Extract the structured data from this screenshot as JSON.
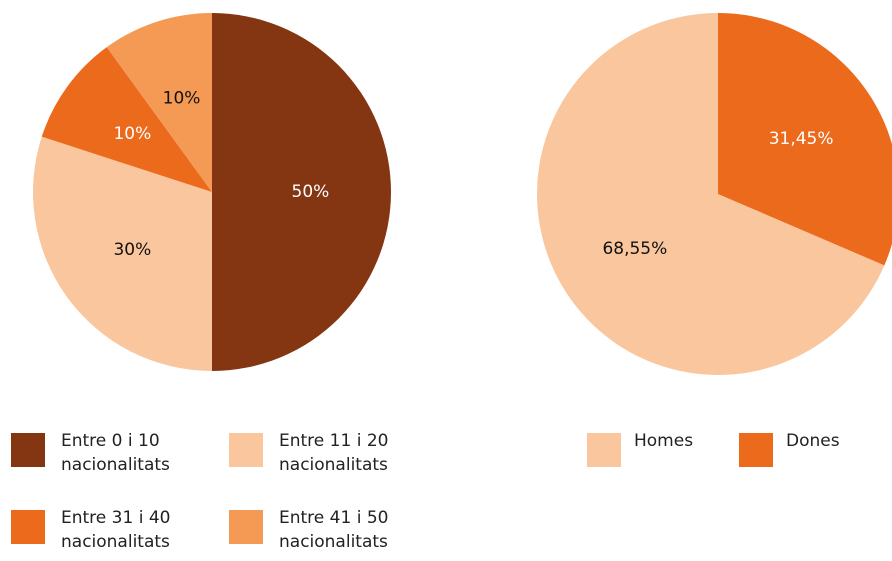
{
  "chart_data": [
    {
      "type": "pie",
      "categories": [
        "Entre 0 i 10 nacionalitats",
        "Entre 11 i 20 nacionalitats",
        "Entre 31 i 40 nacionalitats",
        "Entre 41 i 50 nacionalitats"
      ],
      "values": [
        50,
        30,
        10,
        10
      ],
      "value_labels": [
        "50%",
        "30%",
        "10%",
        "10%"
      ],
      "colors": [
        "#843511",
        "#f9c69e",
        "#ec6a1c",
        "#f49a55"
      ]
    },
    {
      "type": "pie",
      "categories": [
        "Homes",
        "Dones"
      ],
      "values": [
        68.55,
        31.45
      ],
      "value_labels": [
        "68,55%",
        "31,45%"
      ],
      "colors": [
        "#f9c69e",
        "#ec6a1c"
      ]
    }
  ]
}
